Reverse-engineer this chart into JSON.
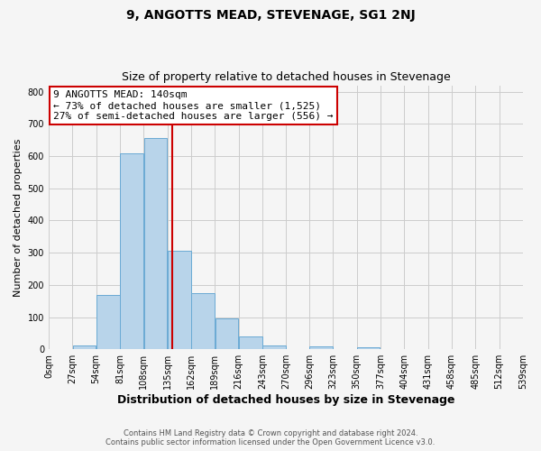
{
  "title": "9, ANGOTTS MEAD, STEVENAGE, SG1 2NJ",
  "subtitle": "Size of property relative to detached houses in Stevenage",
  "xlabel": "Distribution of detached houses by size in Stevenage",
  "ylabel": "Number of detached properties",
  "bar_edges": [
    0,
    27,
    54,
    81,
    108,
    135,
    162,
    189,
    216,
    243,
    270,
    296,
    323,
    350,
    377,
    404,
    431,
    458,
    485,
    512,
    539
  ],
  "bar_heights": [
    0,
    13,
    170,
    610,
    655,
    305,
    175,
    97,
    40,
    13,
    0,
    10,
    0,
    5,
    0,
    0,
    0,
    0,
    0,
    0
  ],
  "bar_color": "#b8d4ea",
  "bar_edge_color": "#6aaad4",
  "property_size": 140,
  "vline_color": "#cc0000",
  "annotation_line1": "9 ANGOTTS MEAD: 140sqm",
  "annotation_line2": "← 73% of detached houses are smaller (1,525)",
  "annotation_line3": "27% of semi-detached houses are larger (556) →",
  "annotation_box_color": "#ffffff",
  "annotation_box_edge_color": "#cc0000",
  "ylim": [
    0,
    820
  ],
  "yticks": [
    0,
    100,
    200,
    300,
    400,
    500,
    600,
    700,
    800
  ],
  "tick_labels": [
    "0sqm",
    "27sqm",
    "54sqm",
    "81sqm",
    "108sqm",
    "135sqm",
    "162sqm",
    "189sqm",
    "216sqm",
    "243sqm",
    "270sqm",
    "296sqm",
    "323sqm",
    "350sqm",
    "377sqm",
    "404sqm",
    "431sqm",
    "458sqm",
    "485sqm",
    "512sqm",
    "539sqm"
  ],
  "footer_line1": "Contains HM Land Registry data © Crown copyright and database right 2024.",
  "footer_line2": "Contains public sector information licensed under the Open Government Licence v3.0.",
  "bg_color": "#f5f5f5",
  "grid_color": "#cccccc"
}
